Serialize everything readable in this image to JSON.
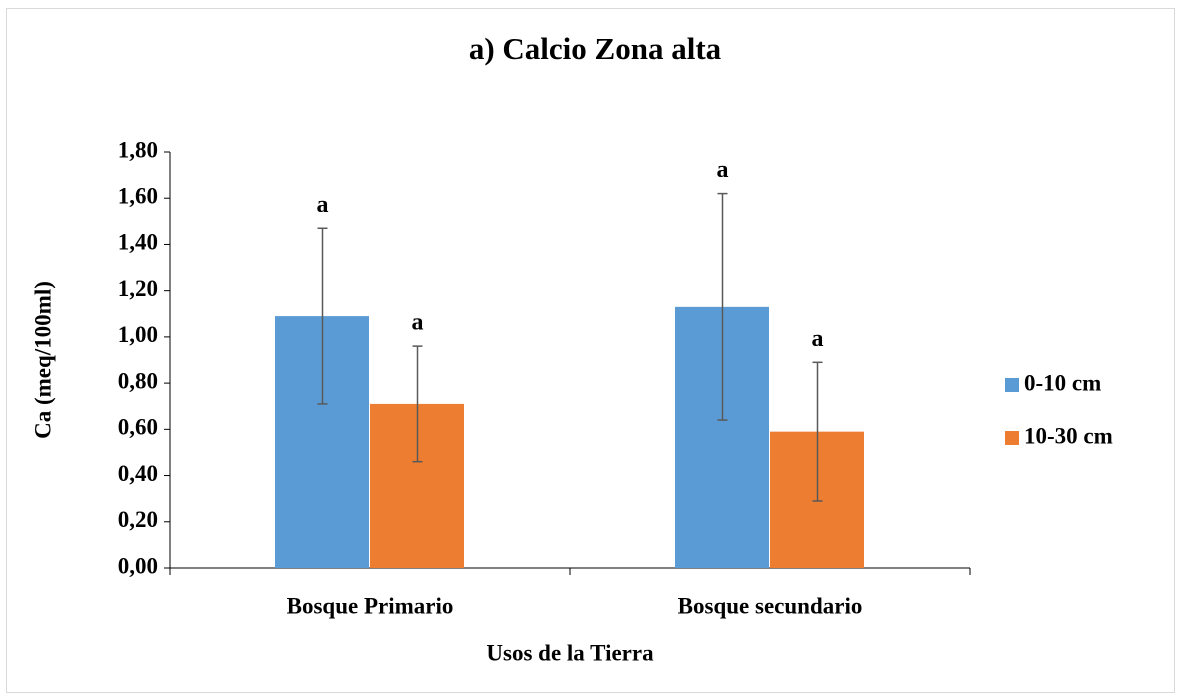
{
  "chart_data": {
    "type": "bar",
    "title": "a) Calcio Zona alta",
    "x_label": "Usos de la Tierra",
    "y_label": "Ca (meq/100ml)",
    "categories": [
      "Bosque Primario",
      "Bosque secundario"
    ],
    "series": [
      {
        "name": "0-10 cm",
        "color": "#5b9bd5",
        "values": [
          1.09,
          1.13
        ],
        "errors": [
          0.38,
          0.49
        ],
        "letters": [
          "a",
          "a"
        ]
      },
      {
        "name": "10-30 cm",
        "color": "#ed7d31",
        "values": [
          0.71,
          0.59
        ],
        "errors": [
          0.25,
          0.3
        ],
        "letters": [
          "a",
          "a"
        ]
      }
    ],
    "ylim": [
      0,
      1.8
    ],
    "yticks": [
      {
        "value": 0,
        "label": "0,00"
      },
      {
        "value": 0.2,
        "label": "0,20"
      },
      {
        "value": 0.4,
        "label": "0,40"
      },
      {
        "value": 0.6,
        "label": "0,60"
      },
      {
        "value": 0.8,
        "label": "0,80"
      },
      {
        "value": 1.0,
        "label": "1,00"
      },
      {
        "value": 1.2,
        "label": "1,20"
      },
      {
        "value": 1.4,
        "label": "1,40"
      },
      {
        "value": 1.6,
        "label": "1,60"
      },
      {
        "value": 1.8,
        "label": "1,80"
      }
    ],
    "grid": false,
    "legend": "right"
  }
}
